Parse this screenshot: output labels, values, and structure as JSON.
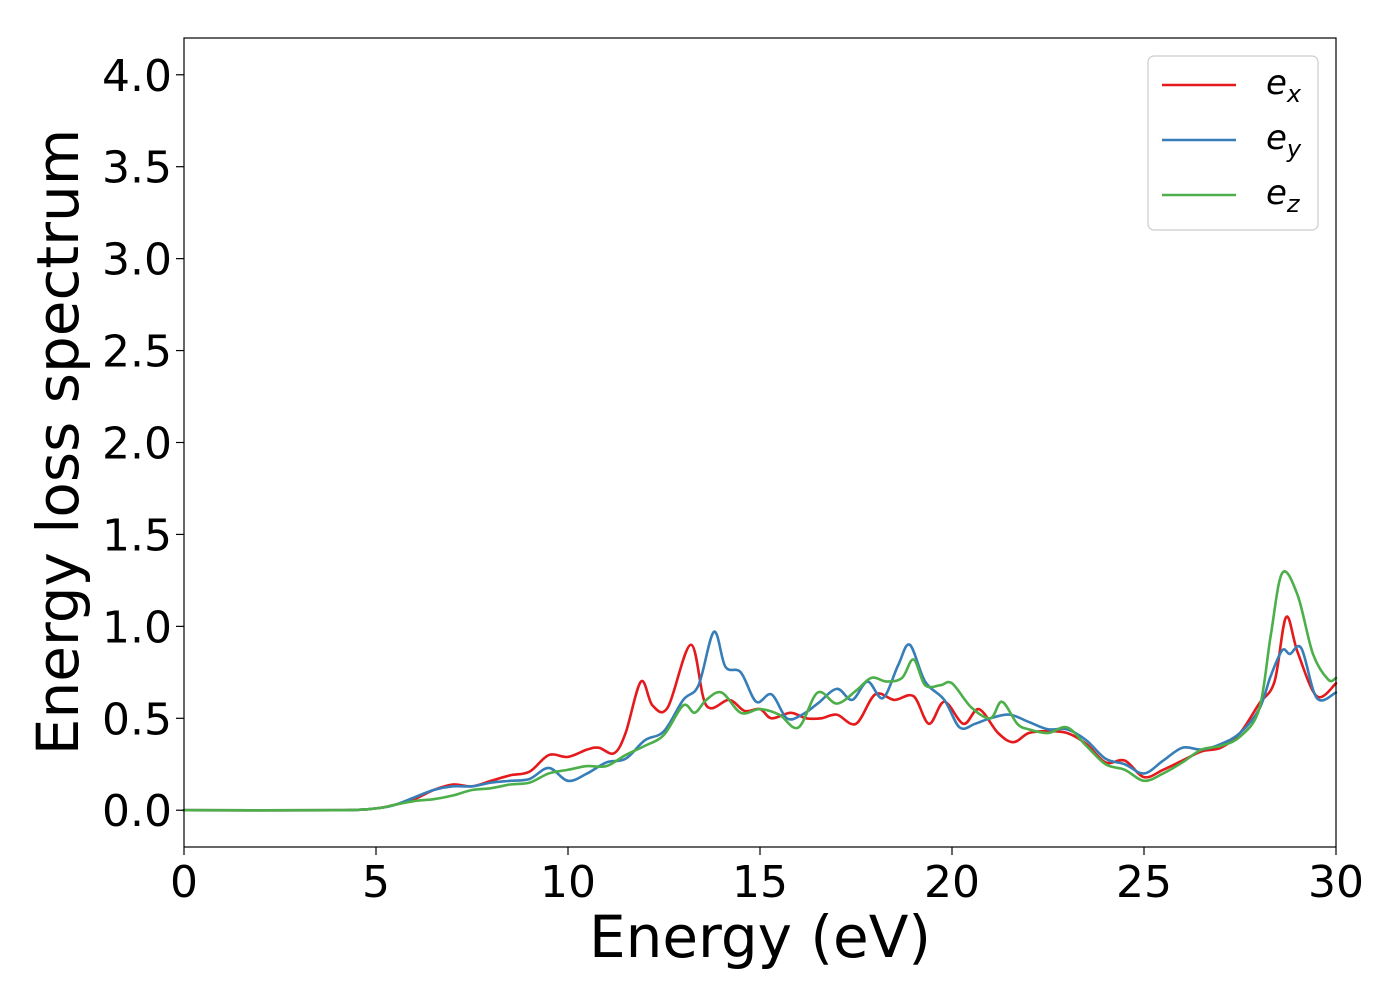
{
  "chart_data": {
    "type": "line",
    "title": "",
    "xlabel": "Energy (eV)",
    "ylabel": "Energy loss spectrum",
    "xlim": [
      0,
      30
    ],
    "ylim": [
      -0.2,
      4.2
    ],
    "xticks": [
      0,
      5,
      10,
      15,
      20,
      25,
      30
    ],
    "xtick_labels": [
      "0",
      "5",
      "10",
      "15",
      "20",
      "25",
      "30"
    ],
    "yticks": [
      0.0,
      0.5,
      1.0,
      1.5,
      2.0,
      2.5,
      3.0,
      3.5,
      4.0
    ],
    "ytick_labels": [
      "0.0",
      "0.5",
      "1.0",
      "1.5",
      "2.0",
      "2.5",
      "3.0",
      "3.5",
      "4.0"
    ],
    "grid": false,
    "legend_position": "top-right",
    "series": [
      {
        "name": "e_x",
        "legend_base": "e",
        "legend_sub": "x",
        "color": "#e41a1c",
        "x": [
          0,
          4,
          5,
          5.5,
          6,
          6.5,
          7,
          7.5,
          8,
          8.5,
          9,
          9.5,
          10,
          10.5,
          10.8,
          11.2,
          11.5,
          11.9,
          12.2,
          12.6,
          13.2,
          13.6,
          14.2,
          14.6,
          15,
          15.3,
          15.8,
          16.2,
          16.6,
          17,
          17.5,
          18,
          18.5,
          19,
          19.4,
          19.8,
          20.3,
          20.7,
          21.2,
          21.6,
          22,
          22.5,
          23,
          23.5,
          24,
          24.5,
          25,
          25.5,
          26,
          26.5,
          27,
          27.5,
          28,
          28.4,
          28.7,
          29,
          29.5,
          30
        ],
        "y": [
          0.0,
          0.0,
          0.01,
          0.03,
          0.06,
          0.11,
          0.14,
          0.13,
          0.16,
          0.19,
          0.21,
          0.3,
          0.29,
          0.33,
          0.34,
          0.31,
          0.42,
          0.7,
          0.57,
          0.56,
          0.9,
          0.57,
          0.6,
          0.54,
          0.55,
          0.5,
          0.53,
          0.5,
          0.5,
          0.52,
          0.47,
          0.63,
          0.6,
          0.62,
          0.47,
          0.59,
          0.47,
          0.55,
          0.42,
          0.37,
          0.42,
          0.43,
          0.42,
          0.36,
          0.26,
          0.27,
          0.18,
          0.22,
          0.27,
          0.32,
          0.34,
          0.42,
          0.58,
          0.7,
          1.05,
          0.86,
          0.62,
          0.69
        ]
      },
      {
        "name": "e_y",
        "legend_base": "e",
        "legend_sub": "y",
        "color": "#377eb8",
        "x": [
          0,
          4,
          5,
          5.5,
          6,
          6.5,
          7,
          7.5,
          8,
          8.5,
          9,
          9.5,
          10,
          10.5,
          11,
          11.5,
          12,
          12.5,
          13,
          13.4,
          13.8,
          14.1,
          14.5,
          14.9,
          15.3,
          15.7,
          16.1,
          16.5,
          17,
          17.4,
          17.8,
          18.2,
          18.6,
          18.9,
          19.3,
          19.8,
          20.2,
          20.6,
          21,
          21.5,
          22,
          22.5,
          23,
          23.5,
          24,
          24.5,
          25,
          25.5,
          26,
          26.5,
          27,
          27.5,
          28,
          28.3,
          28.6,
          28.8,
          29.1,
          29.5,
          30
        ],
        "y": [
          0.0,
          0.0,
          0.01,
          0.03,
          0.07,
          0.11,
          0.13,
          0.13,
          0.15,
          0.16,
          0.17,
          0.23,
          0.16,
          0.2,
          0.26,
          0.28,
          0.38,
          0.43,
          0.6,
          0.68,
          0.97,
          0.78,
          0.75,
          0.59,
          0.63,
          0.5,
          0.52,
          0.58,
          0.66,
          0.6,
          0.7,
          0.61,
          0.79,
          0.9,
          0.7,
          0.6,
          0.45,
          0.47,
          0.5,
          0.52,
          0.48,
          0.44,
          0.44,
          0.38,
          0.28,
          0.25,
          0.2,
          0.27,
          0.34,
          0.33,
          0.36,
          0.42,
          0.55,
          0.73,
          0.87,
          0.85,
          0.88,
          0.61,
          0.64
        ]
      },
      {
        "name": "e_z",
        "legend_base": "e",
        "legend_sub": "z",
        "color": "#4daf4a",
        "x": [
          0,
          4,
          5,
          5.5,
          6,
          6.5,
          7,
          7.5,
          8,
          8.5,
          9,
          9.5,
          10,
          10.5,
          11,
          11.5,
          12,
          12.5,
          13,
          13.3,
          13.6,
          14,
          14.5,
          15,
          15.5,
          16,
          16.5,
          17,
          17.5,
          17.9,
          18.3,
          18.7,
          19,
          19.3,
          19.7,
          20,
          20.5,
          21,
          21.3,
          21.7,
          22,
          22.5,
          23,
          23.5,
          24,
          24.5,
          25,
          25.5,
          26,
          26.5,
          27,
          27.5,
          28,
          28.3,
          28.6,
          29,
          29.4,
          29.8,
          30
        ],
        "y": [
          0.0,
          0.0,
          0.01,
          0.03,
          0.05,
          0.06,
          0.08,
          0.11,
          0.12,
          0.14,
          0.15,
          0.2,
          0.22,
          0.24,
          0.24,
          0.3,
          0.35,
          0.41,
          0.57,
          0.53,
          0.6,
          0.64,
          0.53,
          0.55,
          0.52,
          0.45,
          0.64,
          0.58,
          0.65,
          0.72,
          0.7,
          0.72,
          0.82,
          0.68,
          0.68,
          0.69,
          0.56,
          0.5,
          0.59,
          0.47,
          0.44,
          0.42,
          0.45,
          0.35,
          0.25,
          0.22,
          0.16,
          0.2,
          0.26,
          0.33,
          0.35,
          0.4,
          0.55,
          0.95,
          1.29,
          1.17,
          0.85,
          0.71,
          0.72
        ]
      }
    ]
  }
}
